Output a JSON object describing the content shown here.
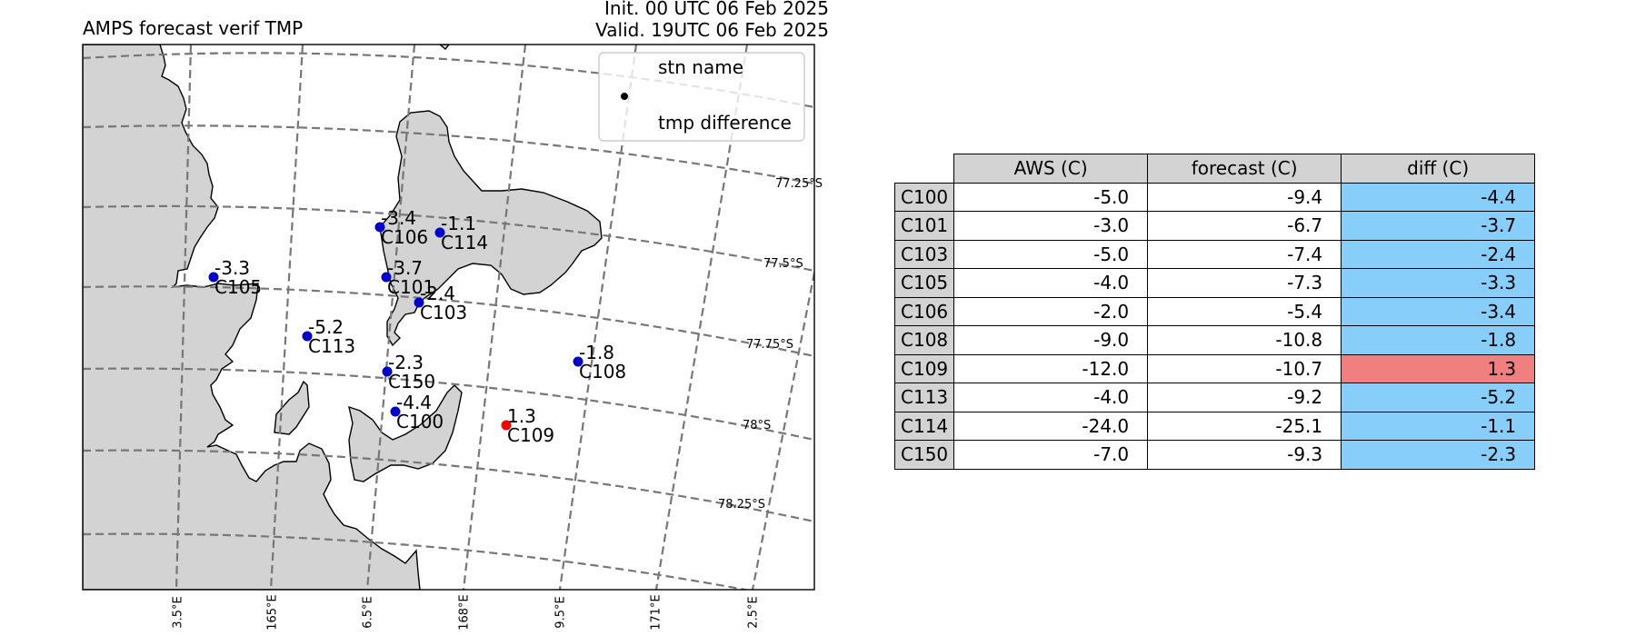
{
  "title": {
    "left": "AMPS forecast verif TMP",
    "init": "Init. 00 UTC 06 Feb 2025",
    "valid": "Valid. 19UTC 06 Feb 2025"
  },
  "legend": {
    "top_label": "stn name",
    "bottom_label": "tmp difference"
  },
  "lat_labels": [
    "77.25°S",
    "77.5°S",
    "77.75°S",
    "78°S",
    "78.25°S"
  ],
  "lon_labels": [
    "3.5°E",
    "165°E",
    "6.5°E",
    "168°E",
    "9.5°E",
    "171°E",
    "2.5°E"
  ],
  "colors": {
    "negative": "#0000cc",
    "positive": "#ff0000",
    "land": "#d3d3d3",
    "table_negative": "#87cefa",
    "table_positive": "#f08080",
    "header": "#d3d3d3"
  },
  "stations": [
    {
      "name": "C100",
      "diff_label": "-4.4"
    },
    {
      "name": "C101",
      "diff_label": "-3.7"
    },
    {
      "name": "C103",
      "diff_label": "-2.4"
    },
    {
      "name": "C105",
      "diff_label": "-3.3"
    },
    {
      "name": "C106",
      "diff_label": "-3.4"
    },
    {
      "name": "C108",
      "diff_label": "-1.8"
    },
    {
      "name": "C109",
      "diff_label": "1.3"
    },
    {
      "name": "C113",
      "diff_label": "-5.2"
    },
    {
      "name": "C114",
      "diff_label": "-1.1"
    },
    {
      "name": "C150",
      "diff_label": "-2.3"
    }
  ],
  "table": {
    "headers": [
      "AWS (C)",
      "forecast (C)",
      "diff (C)"
    ],
    "rows": [
      {
        "stn": "C100",
        "aws": "-5.0",
        "forecast": "-9.4",
        "diff": "-4.4"
      },
      {
        "stn": "C101",
        "aws": "-3.0",
        "forecast": "-6.7",
        "diff": "-3.7"
      },
      {
        "stn": "C103",
        "aws": "-5.0",
        "forecast": "-7.4",
        "diff": "-2.4"
      },
      {
        "stn": "C105",
        "aws": "-4.0",
        "forecast": "-7.3",
        "diff": "-3.3"
      },
      {
        "stn": "C106",
        "aws": "-2.0",
        "forecast": "-5.4",
        "diff": "-3.4"
      },
      {
        "stn": "C108",
        "aws": "-9.0",
        "forecast": "-10.8",
        "diff": "-1.8"
      },
      {
        "stn": "C109",
        "aws": "-12.0",
        "forecast": "-10.7",
        "diff": "1.3"
      },
      {
        "stn": "C113",
        "aws": "-4.0",
        "forecast": "-9.2",
        "diff": "-5.2"
      },
      {
        "stn": "C114",
        "aws": "-24.0",
        "forecast": "-25.1",
        "diff": "-1.1"
      },
      {
        "stn": "C150",
        "aws": "-7.0",
        "forecast": "-9.3",
        "diff": "-2.3"
      }
    ]
  }
}
